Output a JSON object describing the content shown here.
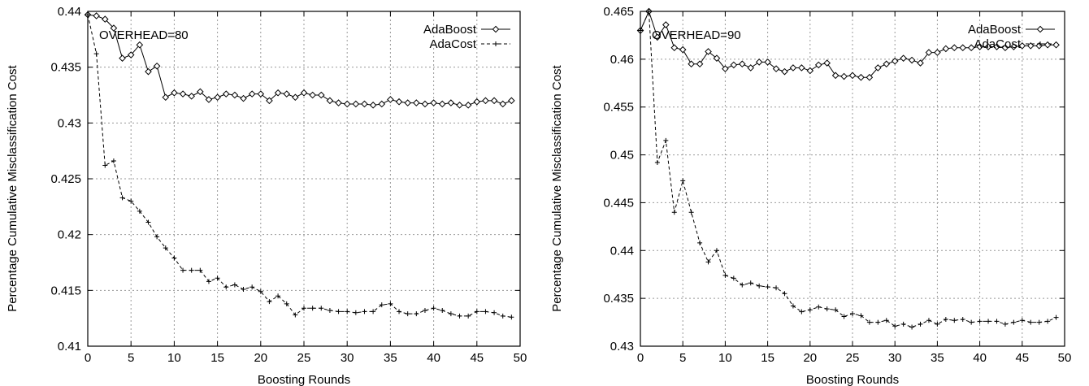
{
  "chart_data": [
    {
      "type": "line",
      "annotation": "OVERHEAD=80",
      "xlabel": "Boosting Rounds",
      "ylabel": "Percentage Cumulative Misclassification Cost",
      "xlim": [
        0,
        50
      ],
      "ylim": [
        0.41,
        0.44
      ],
      "xticks": [
        0,
        5,
        10,
        15,
        20,
        25,
        30,
        35,
        40,
        45,
        50
      ],
      "yticks": [
        0.41,
        0.415,
        0.42,
        0.425,
        0.43,
        0.435,
        0.44
      ],
      "ytick_labels": [
        "0.41",
        "0.415",
        "0.42",
        "0.425",
        "0.43",
        "0.435",
        "0.44"
      ],
      "grid": true,
      "legend_position": "top-right",
      "series": [
        {
          "name": "AdaBoost",
          "style": "solid",
          "marker": "diamond",
          "color": "#000000",
          "x": [
            0,
            1,
            2,
            3,
            4,
            5,
            6,
            7,
            8,
            9,
            10,
            11,
            12,
            13,
            14,
            15,
            16,
            17,
            18,
            19,
            20,
            21,
            22,
            23,
            24,
            25,
            26,
            27,
            28,
            29,
            30,
            31,
            32,
            33,
            34,
            35,
            36,
            37,
            38,
            39,
            40,
            41,
            42,
            43,
            44,
            45,
            46,
            47,
            48,
            49
          ],
          "y": [
            0.4397,
            0.4396,
            0.4393,
            0.4385,
            0.4358,
            0.4361,
            0.437,
            0.4346,
            0.4351,
            0.4323,
            0.4327,
            0.4326,
            0.4324,
            0.4328,
            0.4321,
            0.4323,
            0.4326,
            0.4325,
            0.4322,
            0.4326,
            0.4326,
            0.432,
            0.4327,
            0.4326,
            0.4323,
            0.4327,
            0.4325,
            0.4325,
            0.432,
            0.4318,
            0.4317,
            0.4317,
            0.4317,
            0.4316,
            0.4317,
            0.4321,
            0.4319,
            0.4318,
            0.4318,
            0.4317,
            0.4318,
            0.4317,
            0.4318,
            0.4316,
            0.4316,
            0.4319,
            0.432,
            0.432,
            0.4317,
            0.432
          ]
        },
        {
          "name": "AdaCost",
          "style": "dashed",
          "marker": "plus",
          "color": "#000000",
          "x": [
            0,
            1,
            2,
            3,
            4,
            5,
            6,
            7,
            8,
            9,
            10,
            11,
            12,
            13,
            14,
            15,
            16,
            17,
            18,
            19,
            20,
            21,
            22,
            23,
            24,
            25,
            26,
            27,
            28,
            29,
            30,
            31,
            32,
            33,
            34,
            35,
            36,
            37,
            38,
            39,
            40,
            41,
            42,
            43,
            44,
            45,
            46,
            47,
            48,
            49
          ],
          "y": [
            0.4397,
            0.4362,
            0.4262,
            0.4266,
            0.4233,
            0.423,
            0.4221,
            0.4211,
            0.4198,
            0.4188,
            0.4179,
            0.4168,
            0.4168,
            0.4168,
            0.4158,
            0.4161,
            0.4153,
            0.4155,
            0.4151,
            0.4153,
            0.4149,
            0.414,
            0.4145,
            0.4138,
            0.4128,
            0.4134,
            0.4134,
            0.4134,
            0.4132,
            0.4131,
            0.4131,
            0.413,
            0.4131,
            0.4131,
            0.4137,
            0.4138,
            0.4131,
            0.4129,
            0.4129,
            0.4132,
            0.4134,
            0.4132,
            0.4129,
            0.4127,
            0.4127,
            0.4131,
            0.4131,
            0.413,
            0.4127,
            0.4126
          ]
        }
      ]
    },
    {
      "type": "line",
      "annotation": "OVERHEAD=90",
      "xlabel": "Boosting Rounds",
      "ylabel": "Percentage Cumulative Misclassification Cost",
      "xlim": [
        0,
        50
      ],
      "ylim": [
        0.43,
        0.465
      ],
      "xticks": [
        0,
        5,
        10,
        15,
        20,
        25,
        30,
        35,
        40,
        45,
        50
      ],
      "yticks": [
        0.43,
        0.435,
        0.44,
        0.445,
        0.45,
        0.455,
        0.46,
        0.465
      ],
      "ytick_labels": [
        "0.43",
        "0.435",
        "0.44",
        "0.445",
        "0.45",
        "0.455",
        "0.46",
        "0.465"
      ],
      "grid": true,
      "legend_position": "top-right",
      "series": [
        {
          "name": "AdaBoost",
          "style": "solid",
          "marker": "diamond",
          "color": "#000000",
          "x": [
            0,
            1,
            2,
            3,
            4,
            5,
            6,
            7,
            8,
            9,
            10,
            11,
            12,
            13,
            14,
            15,
            16,
            17,
            18,
            19,
            20,
            21,
            22,
            23,
            24,
            25,
            26,
            27,
            28,
            29,
            30,
            31,
            32,
            33,
            34,
            35,
            36,
            37,
            38,
            39,
            40,
            41,
            42,
            43,
            44,
            45,
            46,
            47,
            48,
            49
          ],
          "y": [
            0.463,
            0.465,
            0.4623,
            0.4636,
            0.4612,
            0.461,
            0.4595,
            0.4595,
            0.4608,
            0.4601,
            0.459,
            0.4594,
            0.4595,
            0.4591,
            0.4597,
            0.4597,
            0.459,
            0.4587,
            0.4591,
            0.4591,
            0.4588,
            0.4594,
            0.4596,
            0.4583,
            0.4582,
            0.4583,
            0.4581,
            0.4581,
            0.4591,
            0.4595,
            0.4598,
            0.4601,
            0.4599,
            0.4596,
            0.4607,
            0.4607,
            0.4611,
            0.4612,
            0.4612,
            0.4612,
            0.4613,
            0.4613,
            0.4613,
            0.4612,
            0.4613,
            0.4614,
            0.4614,
            0.4614,
            0.4615,
            0.4615
          ]
        },
        {
          "name": "AdaCost",
          "style": "dashed",
          "marker": "plus",
          "color": "#000000",
          "x": [
            0,
            1,
            2,
            3,
            4,
            5,
            6,
            7,
            8,
            9,
            10,
            11,
            12,
            13,
            14,
            15,
            16,
            17,
            18,
            19,
            20,
            21,
            22,
            23,
            24,
            25,
            26,
            27,
            28,
            29,
            30,
            31,
            32,
            33,
            34,
            35,
            36,
            37,
            38,
            39,
            40,
            41,
            42,
            43,
            44,
            45,
            46,
            47,
            48,
            49
          ],
          "y": [
            0.463,
            0.465,
            0.4492,
            0.4515,
            0.444,
            0.4473,
            0.444,
            0.4408,
            0.4388,
            0.44,
            0.4374,
            0.4371,
            0.4364,
            0.4366,
            0.4363,
            0.4362,
            0.4361,
            0.4355,
            0.4342,
            0.4336,
            0.4338,
            0.4341,
            0.4339,
            0.4338,
            0.4331,
            0.4334,
            0.4332,
            0.4325,
            0.4325,
            0.4327,
            0.4321,
            0.4323,
            0.432,
            0.4323,
            0.4327,
            0.4323,
            0.4328,
            0.4327,
            0.4328,
            0.4325,
            0.4326,
            0.4326,
            0.4326,
            0.4323,
            0.4325,
            0.4327,
            0.4325,
            0.4325,
            0.4326,
            0.433
          ]
        }
      ]
    }
  ]
}
